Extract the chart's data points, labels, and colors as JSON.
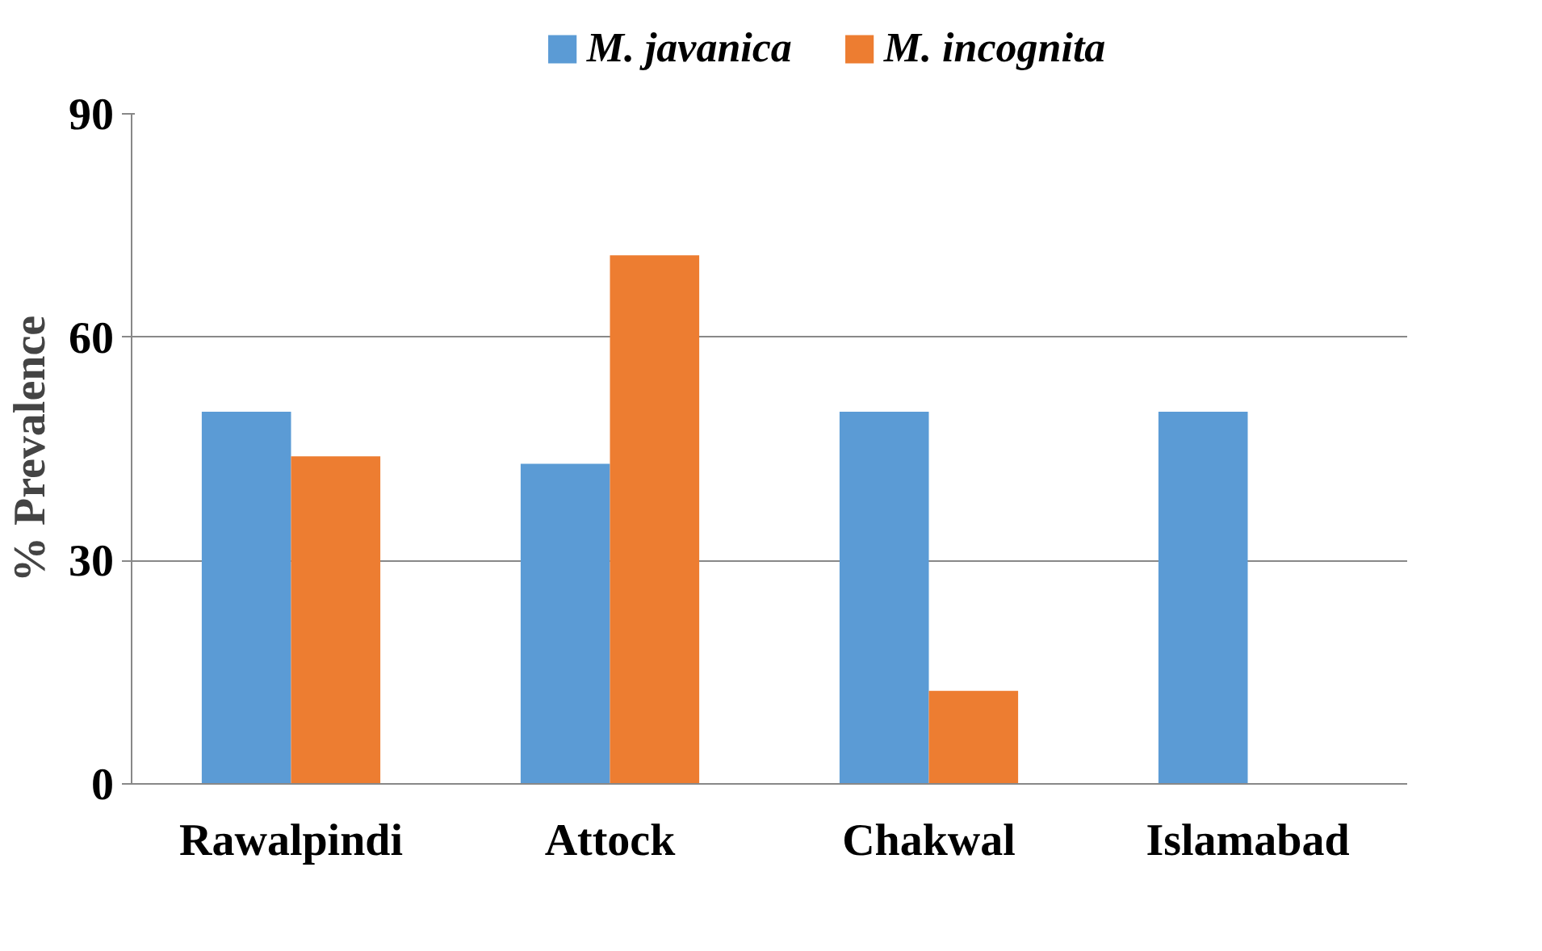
{
  "chart_data": {
    "type": "bar",
    "ylabel": "% Prevalence",
    "categories": [
      "Rawalpindi",
      "Attock",
      "Chakwal",
      "Islamabad"
    ],
    "series": [
      {
        "name": "M. javanica",
        "color": "#5b9bd5",
        "values": [
          50,
          43,
          50,
          50
        ]
      },
      {
        "name": "M. incognita",
        "color": "#ed7d31",
        "values": [
          44,
          71,
          12.5,
          0
        ]
      }
    ],
    "ylim": [
      0,
      90
    ],
    "yticks": [
      0,
      30,
      60,
      90
    ],
    "grid": "y",
    "legend": "top"
  }
}
